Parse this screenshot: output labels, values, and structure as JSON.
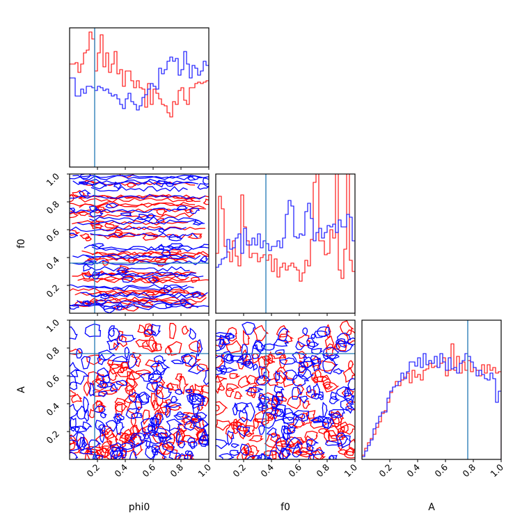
{
  "chart_data": {
    "type": "corner",
    "parameters": [
      "phi0",
      "f0",
      "A"
    ],
    "truth": {
      "phi0": 0.18,
      "f0": 0.36,
      "A": 0.76
    },
    "range": [
      0,
      1
    ],
    "tick_values": [
      0.2,
      0.4,
      0.6,
      0.8,
      1.0
    ],
    "tick_labels": [
      "0.2",
      "0.4",
      "0.6",
      "0.8",
      "1.0"
    ],
    "colors": {
      "series_a": "#ff0000",
      "series_b": "#0000ff",
      "truth": "#1f77b4"
    },
    "histograms": {
      "phi0": {
        "bins": 50,
        "red": [
          0.74,
          0.74,
          0.75,
          0.68,
          0.74,
          0.82,
          0.84,
          0.97,
          0.92,
          0.69,
          0.82,
          0.95,
          0.72,
          0.82,
          0.68,
          0.74,
          0.83,
          0.67,
          0.7,
          0.58,
          0.69,
          0.69,
          0.62,
          0.57,
          0.62,
          0.57,
          0.56,
          0.43,
          0.6,
          0.45,
          0.56,
          0.53,
          0.49,
          0.45,
          0.44,
          0.39,
          0.36,
          0.47,
          0.45,
          0.55,
          0.57,
          0.48,
          0.45,
          0.57,
          0.57,
          0.6,
          0.61,
          0.6,
          0.61,
          0.62
        ],
        "blue": [
          0.64,
          0.64,
          0.51,
          0.51,
          0.56,
          0.53,
          0.58,
          0.58,
          0.57,
          0.55,
          0.58,
          0.57,
          0.55,
          0.56,
          0.53,
          0.51,
          0.52,
          0.49,
          0.45,
          0.42,
          0.49,
          0.53,
          0.47,
          0.45,
          0.41,
          0.44,
          0.5,
          0.52,
          0.56,
          0.6,
          0.58,
          0.56,
          0.71,
          0.67,
          0.7,
          0.76,
          0.79,
          0.76,
          0.78,
          0.66,
          0.7,
          0.83,
          0.74,
          0.64,
          0.73,
          0.71,
          0.66,
          0.69,
          0.76,
          0.73
        ]
      },
      "f0": {
        "bins": 50,
        "red": [
          0.43,
          0.84,
          0.75,
          0.48,
          0.44,
          0.37,
          0.52,
          0.41,
          0.34,
          0.85,
          0.62,
          0.52,
          0.4,
          0.43,
          0.43,
          0.37,
          0.4,
          0.42,
          0.38,
          0.42,
          0.3,
          0.39,
          0.26,
          0.33,
          0.36,
          0.31,
          0.34,
          0.36,
          0.33,
          0.31,
          0.23,
          0.29,
          0.38,
          0.34,
          0.53,
          0.94,
          1.0,
          0.52,
          0.52,
          0.42,
          0.43,
          0.6,
          0.54,
          1.0,
          0.31,
          0.25,
          0.46,
          1.0,
          0.38,
          0.3
        ],
        "blue": [
          0.33,
          0.35,
          0.39,
          0.4,
          0.53,
          0.46,
          0.47,
          0.54,
          0.57,
          0.43,
          0.61,
          0.49,
          0.49,
          0.54,
          0.49,
          0.57,
          0.47,
          0.52,
          0.5,
          0.45,
          0.48,
          0.48,
          0.52,
          0.47,
          0.54,
          0.71,
          0.81,
          0.77,
          0.55,
          0.54,
          0.57,
          0.56,
          0.73,
          0.79,
          0.68,
          0.52,
          0.58,
          0.61,
          0.54,
          0.58,
          0.63,
          0.62,
          0.64,
          0.58,
          0.67,
          0.62,
          0.62,
          0.71,
          0.69,
          0.52
        ]
      },
      "A": {
        "bins": 50,
        "red": [
          0.03,
          0.08,
          0.12,
          0.15,
          0.18,
          0.23,
          0.27,
          0.33,
          0.35,
          0.41,
          0.48,
          0.52,
          0.56,
          0.53,
          0.57,
          0.59,
          0.62,
          0.55,
          0.64,
          0.59,
          0.61,
          0.57,
          0.64,
          0.65,
          0.69,
          0.66,
          0.67,
          0.66,
          0.69,
          0.73,
          0.6,
          0.64,
          0.83,
          0.64,
          0.74,
          0.62,
          0.7,
          0.64,
          0.71,
          0.63,
          0.66,
          0.64,
          0.6,
          0.68,
          0.62,
          0.68,
          0.64,
          0.66,
          0.62,
          0.63
        ],
        "blue": [
          0.02,
          0.06,
          0.1,
          0.14,
          0.22,
          0.26,
          0.31,
          0.34,
          0.34,
          0.44,
          0.49,
          0.52,
          0.53,
          0.56,
          0.62,
          0.58,
          0.63,
          0.7,
          0.7,
          0.67,
          0.73,
          0.66,
          0.76,
          0.68,
          0.71,
          0.69,
          0.74,
          0.66,
          0.76,
          0.7,
          0.64,
          0.73,
          0.65,
          0.66,
          0.62,
          0.69,
          0.71,
          0.76,
          0.74,
          0.7,
          0.66,
          0.6,
          0.64,
          0.61,
          0.58,
          0.57,
          0.62,
          0.58,
          0.41,
          0.49
        ]
      }
    },
    "panels": [
      {
        "row": 0,
        "col": 0,
        "kind": "hist",
        "param": "phi0"
      },
      {
        "row": 1,
        "col": 0,
        "kind": "contour",
        "x": "phi0",
        "y": "f0"
      },
      {
        "row": 1,
        "col": 1,
        "kind": "hist",
        "param": "f0"
      },
      {
        "row": 2,
        "col": 0,
        "kind": "contour",
        "x": "phi0",
        "y": "A"
      },
      {
        "row": 2,
        "col": 1,
        "kind": "contour",
        "x": "f0",
        "y": "A"
      },
      {
        "row": 2,
        "col": 2,
        "kind": "hist",
        "param": "A"
      }
    ],
    "xlabels": [
      "phi0",
      "f0",
      "A"
    ],
    "ylabels": [
      "",
      "f0",
      "A"
    ],
    "grid": false,
    "legend": "none"
  }
}
